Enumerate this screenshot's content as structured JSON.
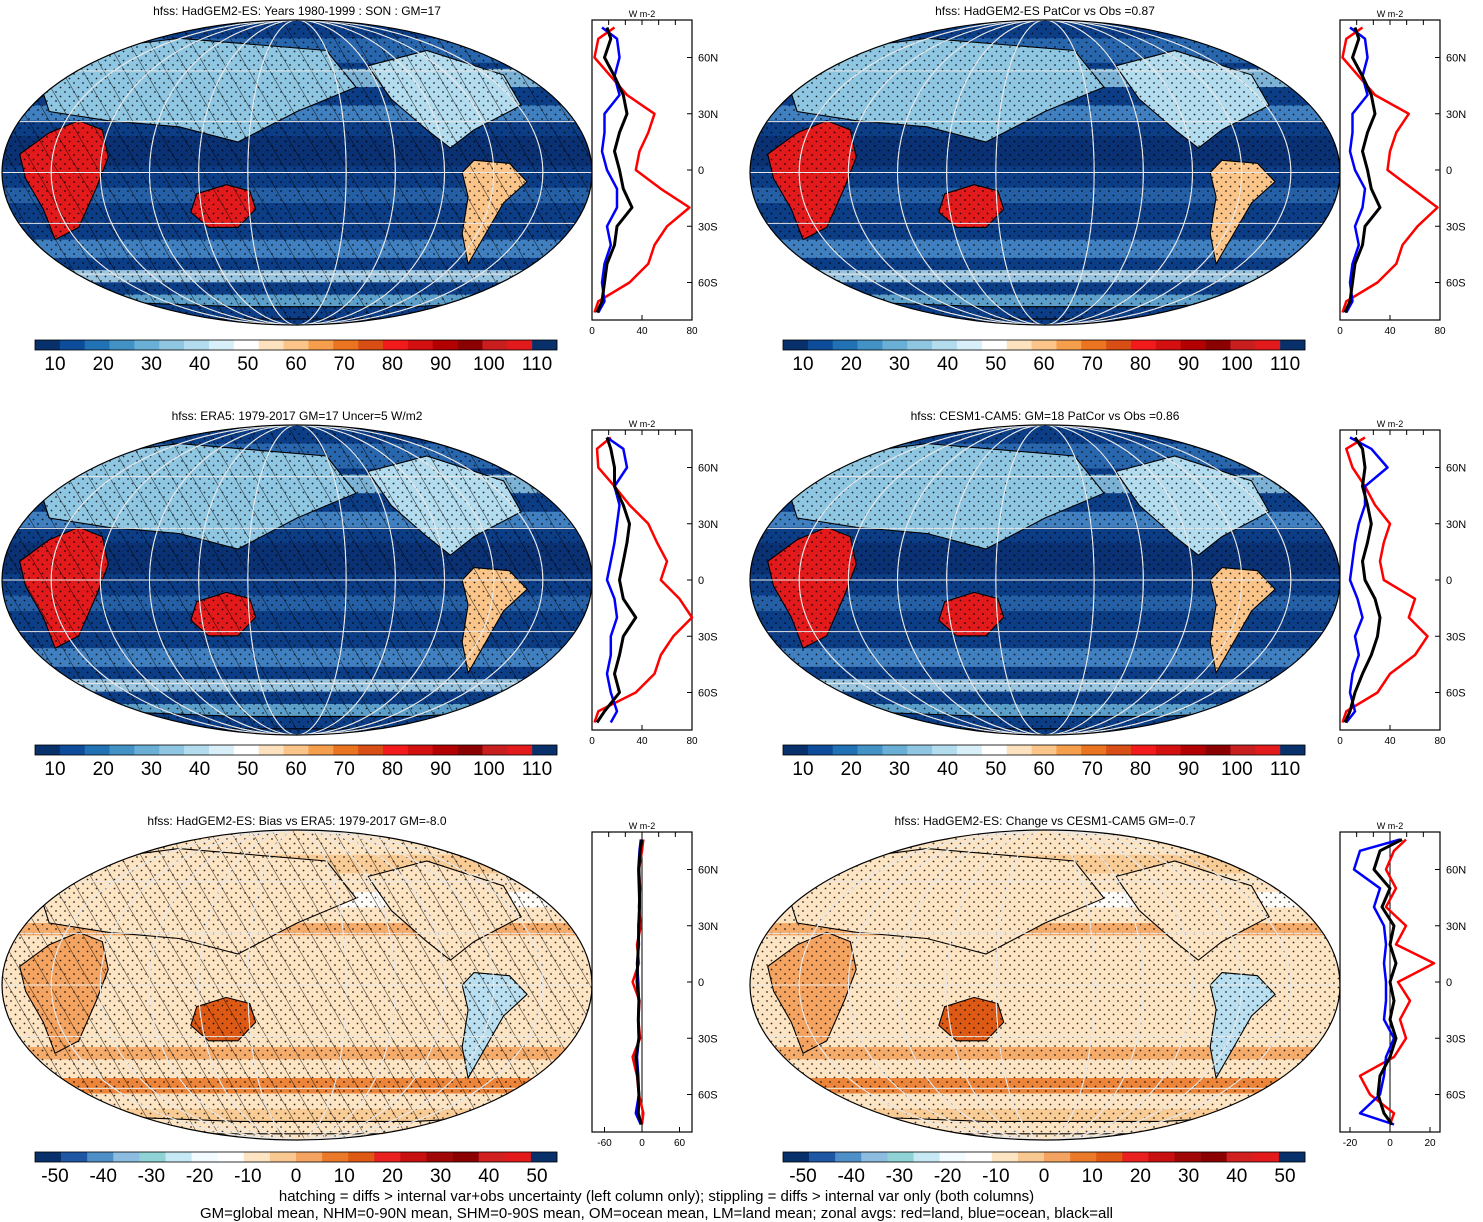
{
  "colors": {
    "sequential": [
      "#08306b",
      "#0c4c9a",
      "#2171b5",
      "#4292c6",
      "#6ab0d6",
      "#8fc7e3",
      "#b3dcef",
      "#d8eef8",
      "#ffffff",
      "#fde2c0",
      "#fbc58a",
      "#f59e4c",
      "#ea7420",
      "#d94e14",
      "#f21a1a",
      "#d40f0f",
      "#b30000",
      "#8b0000",
      "#c81e1e",
      "#e31a1c",
      "#08306b"
    ],
    "diverging": [
      "#08306b",
      "#1f57a4",
      "#4f8fc7",
      "#8cbde0",
      "#8fd3d6",
      "#c6e9f5",
      "#f2fbff",
      "#ffffff",
      "#fde4c3",
      "#f8c890",
      "#f4a460",
      "#ea7a2a",
      "#de5a14",
      "#e82020",
      "#c81010",
      "#a00808",
      "#8b0000",
      "#d02020",
      "#e31a1c",
      "#08306b"
    ],
    "zonal_land": "#ff0000",
    "zonal_ocean": "#0000ff",
    "zonal_all": "#000000"
  },
  "caption": {
    "line1": "hatching = diffs > internal var+obs uncertainty (left column only); stippling = diffs > internal var only (both columns)",
    "line2": "GM=global mean, NHM=0-90N mean, SHM=0-90S mean, OM=ocean mean, LM=land mean; zonal avgs: red=land, blue=ocean, black=all"
  },
  "chart_data": [
    {
      "type": "heatmap",
      "title": "hfss: HadGEM2-ES: Years 1980-1999 : SON : GM=17",
      "field": "mean",
      "hatching": true,
      "stippling": true,
      "colorbar_ticks": [
        "10",
        "20",
        "30",
        "40",
        "50",
        "60",
        "70",
        "80",
        "90",
        "100",
        "110"
      ],
      "zonal": {
        "units": "W m-2",
        "xlim": [
          0,
          80
        ],
        "xticks": [
          "0",
          "40",
          "80"
        ],
        "ylim": [
          -80,
          80
        ],
        "yticks": [
          "60N",
          "30N",
          "0",
          "30S",
          "60S"
        ],
        "lat": [
          76,
          70,
          60,
          50,
          40,
          30,
          20,
          10,
          0,
          -10,
          -20,
          -30,
          -40,
          -50,
          -60,
          -70,
          -76
        ],
        "land": [
          18,
          5,
          2,
          15,
          28,
          50,
          45,
          38,
          35,
          55,
          78,
          60,
          50,
          45,
          30,
          5,
          2
        ],
        "ocean": [
          8,
          20,
          22,
          18,
          22,
          10,
          10,
          8,
          12,
          20,
          20,
          12,
          15,
          10,
          8,
          10,
          5
        ],
        "all": [
          12,
          15,
          10,
          18,
          25,
          28,
          22,
          18,
          22,
          25,
          32,
          20,
          18,
          12,
          10,
          8,
          4
        ]
      }
    },
    {
      "type": "heatmap",
      "title": "hfss: HadGEM2-ES PatCor vs Obs =0.87",
      "field": "mean",
      "hatching": false,
      "stippling": true,
      "colorbar_ticks": [
        "10",
        "20",
        "30",
        "40",
        "50",
        "60",
        "70",
        "80",
        "90",
        "100",
        "110"
      ],
      "zonal": {
        "units": "W m-2",
        "xlim": [
          0,
          80
        ],
        "xticks": [
          "0",
          "40",
          "80"
        ],
        "ylim": [
          -80,
          80
        ],
        "yticks": [
          "60N",
          "30N",
          "0",
          "30S",
          "60S"
        ],
        "lat": [
          76,
          70,
          60,
          50,
          40,
          30,
          20,
          10,
          0,
          -10,
          -20,
          -30,
          -40,
          -50,
          -60,
          -70,
          -76
        ],
        "land": [
          18,
          5,
          2,
          15,
          28,
          55,
          45,
          40,
          38,
          58,
          78,
          62,
          50,
          45,
          30,
          5,
          2
        ],
        "ocean": [
          8,
          20,
          22,
          18,
          22,
          10,
          10,
          8,
          12,
          20,
          18,
          12,
          15,
          10,
          8,
          10,
          5
        ],
        "all": [
          12,
          15,
          10,
          18,
          25,
          28,
          22,
          18,
          22,
          25,
          32,
          20,
          18,
          12,
          10,
          8,
          4
        ]
      }
    },
    {
      "type": "heatmap",
      "title": "hfss: ERA5: 1979-2017 GM=17 Uncer=5 W/m2",
      "field": "mean",
      "hatching": true,
      "stippling": true,
      "colorbar_ticks": [
        "10",
        "20",
        "30",
        "40",
        "50",
        "60",
        "70",
        "80",
        "90",
        "100",
        "110"
      ],
      "zonal": {
        "units": "W m-2",
        "xlim": [
          0,
          80
        ],
        "xticks": [
          "0",
          "40",
          "80"
        ],
        "ylim": [
          -80,
          80
        ],
        "yticks": [
          "60N",
          "30N",
          "0",
          "30S",
          "60S"
        ],
        "lat": [
          76,
          70,
          60,
          50,
          40,
          30,
          20,
          10,
          0,
          -10,
          -20,
          -30,
          -40,
          -50,
          -60,
          -70,
          -76
        ],
        "land": [
          15,
          4,
          5,
          18,
          30,
          45,
          52,
          60,
          55,
          70,
          80,
          65,
          55,
          50,
          35,
          5,
          2
        ],
        "ocean": [
          12,
          25,
          28,
          18,
          22,
          20,
          18,
          15,
          12,
          18,
          20,
          15,
          15,
          12,
          15,
          20,
          15
        ],
        "all": [
          12,
          15,
          18,
          18,
          25,
          30,
          28,
          25,
          22,
          25,
          35,
          25,
          22,
          18,
          22,
          10,
          4
        ]
      }
    },
    {
      "type": "heatmap",
      "title": "hfss: CESM1-CAM5: GM=18 PatCor vs Obs =0.86",
      "field": "mean",
      "hatching": false,
      "stippling": true,
      "colorbar_ticks": [
        "10",
        "20",
        "30",
        "40",
        "50",
        "60",
        "70",
        "80",
        "90",
        "100",
        "110"
      ],
      "zonal": {
        "units": "W m-2",
        "xlim": [
          0,
          80
        ],
        "xticks": [
          "0",
          "40",
          "80"
        ],
        "ylim": [
          -80,
          80
        ],
        "yticks": [
          "60N",
          "30N",
          "0",
          "30S",
          "60S"
        ],
        "lat": [
          76,
          70,
          60,
          50,
          40,
          30,
          20,
          10,
          0,
          -10,
          -20,
          -30,
          -40,
          -50,
          -60,
          -70,
          -76
        ],
        "land": [
          20,
          5,
          10,
          20,
          28,
          40,
          35,
          32,
          35,
          60,
          55,
          70,
          60,
          40,
          30,
          5,
          2
        ],
        "ocean": [
          8,
          25,
          38,
          20,
          20,
          15,
          12,
          10,
          8,
          14,
          18,
          12,
          15,
          10,
          8,
          12,
          5
        ],
        "all": [
          12,
          18,
          20,
          18,
          22,
          25,
          22,
          18,
          20,
          28,
          32,
          30,
          25,
          18,
          12,
          8,
          4
        ]
      }
    },
    {
      "type": "heatmap",
      "title": "hfss: HadGEM2-ES: Bias vs ERA5: 1979-2017  GM=-8.0",
      "field": "difference",
      "hatching": true,
      "stippling": true,
      "colorbar_ticks": [
        "-50",
        "-40",
        "-30",
        "-20",
        "-10",
        "0",
        "10",
        "20",
        "30",
        "40",
        "50"
      ],
      "zonal": {
        "units": "W m-2",
        "xlim": [
          -80,
          80
        ],
        "xticks": [
          "-60",
          "0",
          "60"
        ],
        "ylim": [
          -80,
          80
        ],
        "yticks": [
          "60N",
          "30N",
          "0",
          "30S",
          "60S"
        ],
        "lat": [
          76,
          70,
          60,
          50,
          40,
          30,
          20,
          10,
          0,
          -10,
          -20,
          -30,
          -40,
          -50,
          -60,
          -70,
          -76
        ],
        "land": [
          2,
          0,
          -5,
          -3,
          -5,
          -2,
          -8,
          -5,
          -15,
          -4,
          -6,
          -3,
          -15,
          -8,
          -5,
          2,
          0
        ],
        "ocean": [
          -2,
          -4,
          -6,
          -5,
          -4,
          -6,
          -5,
          -8,
          -6,
          -5,
          -6,
          -5,
          -8,
          -6,
          -5,
          -10,
          -2
        ],
        "all": [
          0,
          -3,
          -5,
          -4,
          -4,
          -5,
          -6,
          -7,
          -8,
          -5,
          -6,
          -5,
          -10,
          -7,
          -5,
          -6,
          -1
        ]
      }
    },
    {
      "type": "heatmap",
      "title": "hfss: HadGEM2-ES: Change vs CESM1-CAM5 GM=-0.7",
      "field": "difference",
      "hatching": false,
      "stippling": true,
      "colorbar_ticks": [
        "-50",
        "-40",
        "-30",
        "-20",
        "-10",
        "0",
        "10",
        "20",
        "30",
        "40",
        "50"
      ],
      "zonal": {
        "units": "W m-2",
        "xlim": [
          -25,
          25
        ],
        "xticks": [
          "-20",
          "0",
          "20"
        ],
        "ylim": [
          -80,
          80
        ],
        "yticks": [
          "60N",
          "30N",
          "0",
          "30S",
          "60S"
        ],
        "lat": [
          76,
          70,
          60,
          50,
          40,
          30,
          20,
          10,
          0,
          -10,
          -20,
          -30,
          -40,
          -50,
          -60,
          -70,
          -76
        ],
        "land": [
          8,
          2,
          -2,
          3,
          -2,
          8,
          3,
          22,
          4,
          10,
          5,
          8,
          2,
          -15,
          -10,
          2,
          0
        ],
        "ocean": [
          5,
          -15,
          -18,
          -5,
          -8,
          -3,
          -2,
          -3,
          -2,
          -2,
          -3,
          2,
          -2,
          -3,
          -5,
          -15,
          2
        ],
        "all": [
          6,
          -5,
          -8,
          0,
          -4,
          2,
          0,
          3,
          0,
          2,
          0,
          3,
          0,
          -5,
          -6,
          -3,
          1
        ]
      }
    }
  ]
}
